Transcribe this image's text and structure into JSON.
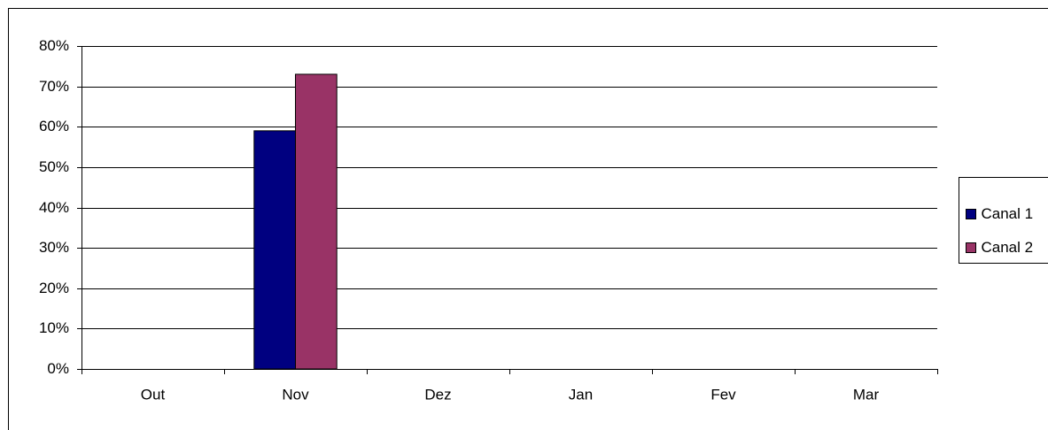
{
  "chart_data": {
    "type": "bar",
    "categories": [
      "Out",
      "Nov",
      "Dez",
      "Jan",
      "Fev",
      "Mar"
    ],
    "series": [
      {
        "name": "Canal 1",
        "color": "#000080",
        "values": [
          null,
          59,
          null,
          null,
          null,
          null
        ]
      },
      {
        "name": "Canal 2",
        "color": "#993366",
        "values": [
          null,
          73,
          null,
          null,
          null,
          null
        ]
      }
    ],
    "ylim": [
      0,
      80
    ],
    "yticks": [
      {
        "value": 0,
        "label": "0%"
      },
      {
        "value": 10,
        "label": "10%"
      },
      {
        "value": 20,
        "label": "20%"
      },
      {
        "value": 30,
        "label": "30%"
      },
      {
        "value": 40,
        "label": "40%"
      },
      {
        "value": 50,
        "label": "50%"
      },
      {
        "value": 60,
        "label": "60%"
      },
      {
        "value": 70,
        "label": "70%"
      },
      {
        "value": 80,
        "label": "80%"
      }
    ],
    "grid": true,
    "legend": "right"
  }
}
